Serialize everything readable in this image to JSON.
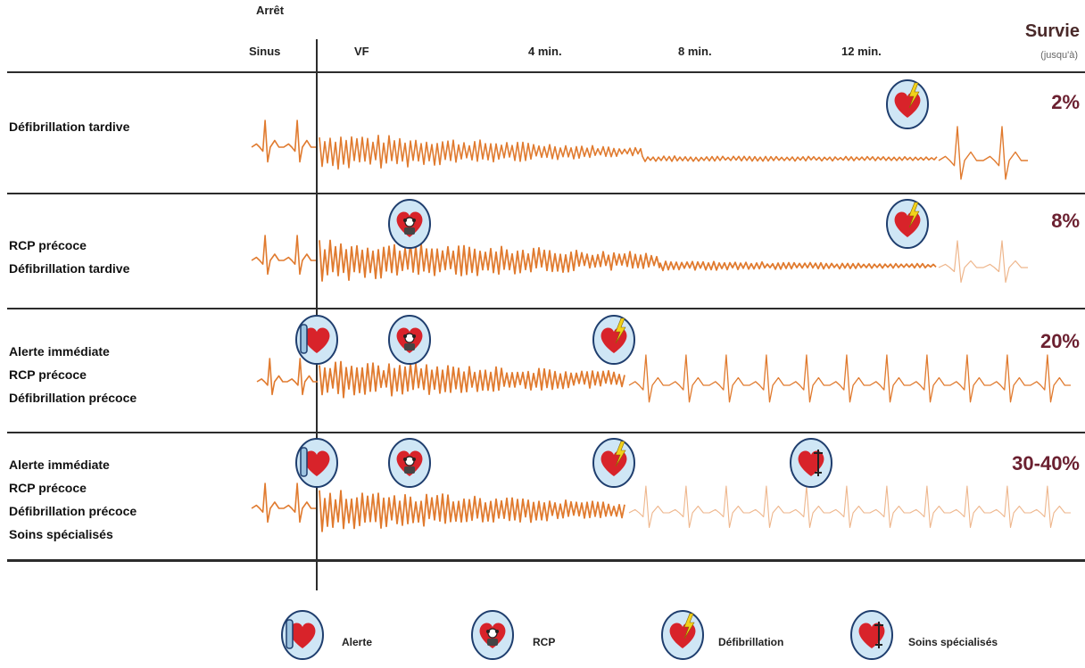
{
  "header": {
    "arret": "Arrêt",
    "sinus": "Sinus",
    "vf": "VF",
    "t4": "4 min.",
    "t8": "8 min.",
    "t12": "12 min.",
    "survie": "Survie",
    "jusqua": "(jusqu'à)"
  },
  "rows": [
    {
      "lines": [
        "Défibrillation tardive"
      ],
      "survival": "2%"
    },
    {
      "lines": [
        "RCP précoce",
        "Défibrillation tardive"
      ],
      "survival": "8%"
    },
    {
      "lines": [
        "Alerte immédiate",
        "RCP précoce",
        "Défibrillation précoce"
      ],
      "survival": "20%"
    },
    {
      "lines": [
        "Alerte immédiate",
        "RCP  précoce",
        "Défibrillation précoce",
        "Soins spécialisés"
      ],
      "survival": "30-40%"
    }
  ],
  "legend": {
    "alerte": "Alerte",
    "rcp": "RCP",
    "defib": "Défibrillation",
    "soins": "Soins spécialisés"
  },
  "icons": {
    "alerte": "phone-heart-icon",
    "rcp": "cpr-heart-icon",
    "defib": "defibrillation-heart-icon",
    "soins": "specialized-care-heart-icon"
  },
  "colors": {
    "trace": "#e07a2e",
    "badge_fill": "#cfe6f5",
    "badge_stroke": "#1f3e6e",
    "heart": "#d8232a",
    "bolt": "#f2d21a",
    "survival_text": "#6b2030"
  }
}
